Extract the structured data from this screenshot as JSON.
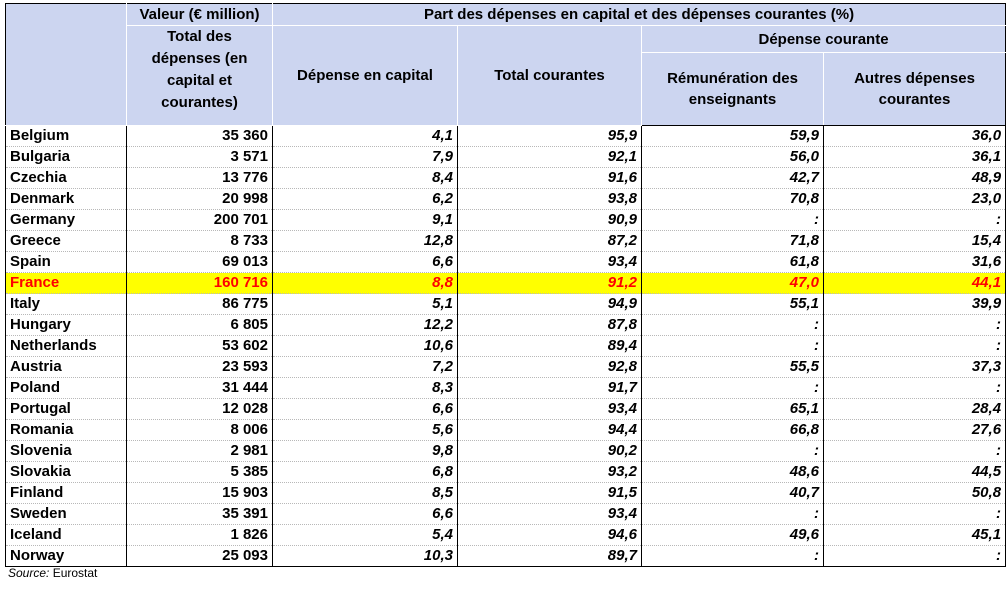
{
  "header": {
    "valeur": "Valeur (€ million)",
    "part": "Part des dépenses en capital et des dépenses courantes (%)",
    "total_depenses": "Total des dépenses (en capital et courantes)",
    "depense_capital": "Dépense en capital",
    "total_courantes": "Total courantes",
    "depense_courante": "Dépense courante",
    "remuneration": "Rémunération des enseignants",
    "autres": "Autres dépenses courantes"
  },
  "rows": [
    {
      "country": "Belgium",
      "total": "35 360",
      "capital": "4,1",
      "courantes": "95,9",
      "remun": "59,9",
      "autres": "36,0"
    },
    {
      "country": "Bulgaria",
      "total": "3 571",
      "capital": "7,9",
      "courantes": "92,1",
      "remun": "56,0",
      "autres": "36,1"
    },
    {
      "country": "Czechia",
      "total": "13 776",
      "capital": "8,4",
      "courantes": "91,6",
      "remun": "42,7",
      "autres": "48,9"
    },
    {
      "country": "Denmark",
      "total": "20 998",
      "capital": "6,2",
      "courantes": "93,8",
      "remun": "70,8",
      "autres": "23,0"
    },
    {
      "country": "Germany",
      "total": "200 701",
      "capital": "9,1",
      "courantes": "90,9",
      "remun": ":",
      "autres": ":"
    },
    {
      "country": "Greece",
      "total": "8 733",
      "capital": "12,8",
      "courantes": "87,2",
      "remun": "71,8",
      "autres": "15,4"
    },
    {
      "country": "Spain",
      "total": "69 013",
      "capital": "6,6",
      "courantes": "93,4",
      "remun": "61,8",
      "autres": "31,6"
    },
    {
      "country": "France",
      "total": "160 716",
      "capital": "8,8",
      "courantes": "91,2",
      "remun": "47,0",
      "autres": "44,1",
      "highlight": true
    },
    {
      "country": "Italy",
      "total": "86 775",
      "capital": "5,1",
      "courantes": "94,9",
      "remun": "55,1",
      "autres": "39,9"
    },
    {
      "country": "Hungary",
      "total": "6 805",
      "capital": "12,2",
      "courantes": "87,8",
      "remun": ":",
      "autres": ":"
    },
    {
      "country": "Netherlands",
      "total": "53 602",
      "capital": "10,6",
      "courantes": "89,4",
      "remun": ":",
      "autres": ":"
    },
    {
      "country": "Austria",
      "total": "23 593",
      "capital": "7,2",
      "courantes": "92,8",
      "remun": "55,5",
      "autres": "37,3"
    },
    {
      "country": "Poland",
      "total": "31 444",
      "capital": "8,3",
      "courantes": "91,7",
      "remun": ":",
      "autres": ":"
    },
    {
      "country": "Portugal",
      "total": "12 028",
      "capital": "6,6",
      "courantes": "93,4",
      "remun": "65,1",
      "autres": "28,4"
    },
    {
      "country": "Romania",
      "total": "8 006",
      "capital": "5,6",
      "courantes": "94,4",
      "remun": "66,8",
      "autres": "27,6"
    },
    {
      "country": "Slovenia",
      "total": "2 981",
      "capital": "9,8",
      "courantes": "90,2",
      "remun": ":",
      "autres": ":"
    },
    {
      "country": "Slovakia",
      "total": "5 385",
      "capital": "6,8",
      "courantes": "93,2",
      "remun": "48,6",
      "autres": "44,5"
    },
    {
      "country": "Finland",
      "total": "15 903",
      "capital": "8,5",
      "courantes": "91,5",
      "remun": "40,7",
      "autres": "50,8"
    },
    {
      "country": "Sweden",
      "total": "35 391",
      "capital": "6,6",
      "courantes": "93,4",
      "remun": ":",
      "autres": ":"
    },
    {
      "country": "Iceland",
      "total": "1 826",
      "capital": "5,4",
      "courantes": "94,6",
      "remun": "49,6",
      "autres": "45,1"
    },
    {
      "country": "Norway",
      "total": "25 093",
      "capital": "10,3",
      "courantes": "89,7",
      "remun": ":",
      "autres": ":"
    }
  ],
  "source": {
    "label": "Source:",
    "value": "Eurostat"
  },
  "colors": {
    "header_bg": "#ccd5f0",
    "highlight_bg": "#ffff00",
    "highlight_text": "#ff0000"
  }
}
